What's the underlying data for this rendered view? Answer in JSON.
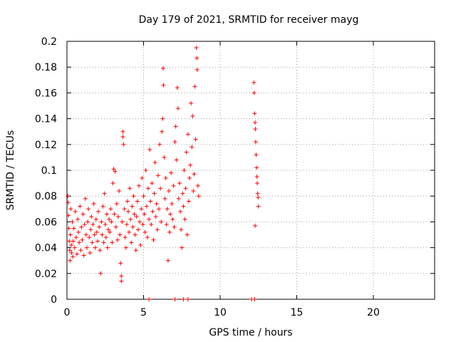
{
  "chart_data": {
    "type": "scatter",
    "title": "Day 179 of 2021, SRMTID for receiver mayg",
    "xlabel": "GPS time / hours",
    "ylabel": "SRMTID / TECUs",
    "xlim": [
      0,
      24
    ],
    "ylim": [
      0,
      0.2
    ],
    "xticks": [
      0,
      5,
      10,
      15,
      20
    ],
    "xtick_labels": [
      "0",
      "5",
      "10",
      "15",
      "20"
    ],
    "yticks": [
      0,
      0.02,
      0.04,
      0.06,
      0.08,
      0.1,
      0.12,
      0.14,
      0.16,
      0.18,
      0.2
    ],
    "ytick_labels": [
      "0",
      "0.02",
      "0.04",
      "0.06",
      "0.08",
      "0.1",
      "0.12",
      "0.14",
      "0.16",
      "0.18",
      "0.2"
    ],
    "grid": true,
    "marker": "+",
    "color": "#ff0000",
    "series": [
      {
        "name": "SRMTID",
        "points": [
          [
            0.05,
            0.08
          ],
          [
            0.08,
            0.075
          ],
          [
            0.1,
            0.065
          ],
          [
            0.12,
            0.055
          ],
          [
            0.15,
            0.045
          ],
          [
            0.18,
            0.038
          ],
          [
            0.2,
            0.03
          ],
          [
            0.22,
            0.05
          ],
          [
            0.25,
            0.07
          ],
          [
            0.28,
            0.042
          ],
          [
            0.3,
            0.036
          ],
          [
            0.35,
            0.06
          ],
          [
            0.38,
            0.033
          ],
          [
            0.4,
            0.045
          ],
          [
            0.45,
            0.055
          ],
          [
            0.5,
            0.04
          ],
          [
            0.55,
            0.068
          ],
          [
            0.6,
            0.048
          ],
          [
            0.65,
            0.035
          ],
          [
            0.7,
            0.062
          ],
          [
            0.75,
            0.052
          ],
          [
            0.8,
            0.044
          ],
          [
            0.85,
            0.072
          ],
          [
            0.9,
            0.038
          ],
          [
            0.95,
            0.056
          ],
          [
            1.0,
            0.046
          ],
          [
            1.05,
            0.066
          ],
          [
            1.1,
            0.034
          ],
          [
            1.15,
            0.058
          ],
          [
            1.2,
            0.078
          ],
          [
            1.25,
            0.05
          ],
          [
            1.3,
            0.04
          ],
          [
            1.35,
            0.06
          ],
          [
            1.4,
            0.07
          ],
          [
            1.45,
            0.048
          ],
          [
            1.5,
            0.036
          ],
          [
            1.55,
            0.054
          ],
          [
            1.6,
            0.064
          ],
          [
            1.65,
            0.044
          ],
          [
            1.7,
            0.058
          ],
          [
            1.75,
            0.074
          ],
          [
            1.8,
            0.05
          ],
          [
            1.85,
            0.04
          ],
          [
            1.9,
            0.062
          ],
          [
            1.95,
            0.052
          ],
          [
            2.0,
            0.045
          ],
          [
            2.05,
            0.068
          ],
          [
            2.1,
            0.056
          ],
          [
            2.15,
            0.038
          ],
          [
            2.2,
            0.02
          ],
          [
            2.25,
            0.06
          ],
          [
            2.3,
            0.05
          ],
          [
            2.35,
            0.072
          ],
          [
            2.4,
            0.044
          ],
          [
            2.45,
            0.082
          ],
          [
            2.5,
            0.058
          ],
          [
            2.55,
            0.048
          ],
          [
            2.6,
            0.066
          ],
          [
            2.65,
            0.04
          ],
          [
            2.7,
            0.054
          ],
          [
            2.75,
            0.062
          ],
          [
            2.8,
            0.052
          ],
          [
            2.85,
            0.07
          ],
          [
            2.9,
            0.06
          ],
          [
            2.95,
            0.044
          ],
          [
            3.0,
            0.09
          ],
          [
            3.05,
            0.101
          ],
          [
            3.1,
            0.066
          ],
          [
            3.15,
            0.099
          ],
          [
            3.2,
            0.056
          ],
          [
            3.25,
            0.074
          ],
          [
            3.3,
            0.046
          ],
          [
            3.35,
            0.064
          ],
          [
            3.4,
            0.084
          ],
          [
            3.45,
            0.05
          ],
          [
            3.5,
            0.028
          ],
          [
            3.55,
            0.018
          ],
          [
            3.55,
            0.014
          ],
          [
            3.6,
            0.06
          ],
          [
            3.65,
            0.13
          ],
          [
            3.65,
            0.126
          ],
          [
            3.7,
            0.12
          ],
          [
            3.75,
            0.07
          ],
          [
            3.8,
            0.048
          ],
          [
            3.85,
            0.04
          ],
          [
            3.9,
            0.058
          ],
          [
            3.95,
            0.076
          ],
          [
            4.0,
            0.068
          ],
          [
            4.05,
            0.052
          ],
          [
            4.1,
            0.086
          ],
          [
            4.15,
            0.062
          ],
          [
            4.2,
            0.044
          ],
          [
            4.25,
            0.072
          ],
          [
            4.3,
            0.056
          ],
          [
            4.35,
            0.08
          ],
          [
            4.4,
            0.066
          ],
          [
            4.45,
            0.05
          ],
          [
            4.5,
            0.038
          ],
          [
            4.55,
            0.064
          ],
          [
            4.6,
            0.076
          ],
          [
            4.65,
            0.054
          ],
          [
            4.7,
            0.088
          ],
          [
            4.75,
            0.06
          ],
          [
            4.8,
            0.042
          ],
          [
            4.85,
            0.07
          ],
          [
            4.9,
            0.094
          ],
          [
            4.95,
            0.058
          ],
          [
            5.0,
            0.08
          ],
          [
            5.05,
            0.066
          ],
          [
            5.1,
            0.052
          ],
          [
            5.15,
            0.1
          ],
          [
            5.2,
            0.072
          ],
          [
            5.25,
            0.048
          ],
          [
            5.3,
            0.086
          ],
          [
            5.35,
            0.062
          ],
          [
            5.4,
            0.116
          ],
          [
            5.45,
            0.076
          ],
          [
            5.5,
            0.058
          ],
          [
            5.55,
            0.09
          ],
          [
            5.6,
            0.068
          ],
          [
            5.65,
            0.046
          ],
          [
            5.7,
            0.082
          ],
          [
            5.75,
            0.106
          ],
          [
            5.8,
            0.064
          ],
          [
            5.85,
            0.074
          ],
          [
            5.9,
            0.054
          ],
          [
            5.95,
            0.096
          ],
          [
            6.0,
            0.07
          ],
          [
            6.05,
            0.12
          ],
          [
            6.1,
            0.086
          ],
          [
            6.15,
            0.06
          ],
          [
            6.2,
            0.13
          ],
          [
            6.25,
            0.14
          ],
          [
            6.28,
            0.179
          ],
          [
            6.3,
            0.166
          ],
          [
            6.35,
            0.11
          ],
          [
            6.4,
            0.078
          ],
          [
            6.45,
            0.094
          ],
          [
            6.5,
            0.058
          ],
          [
            6.55,
            0.07
          ],
          [
            6.6,
            0.03
          ],
          [
            6.65,
            0.084
          ],
          [
            6.7,
            0.052
          ],
          [
            6.75,
            0.066
          ],
          [
            6.8,
            0.098
          ],
          [
            6.85,
            0.074
          ],
          [
            6.9,
            0.062
          ],
          [
            6.95,
            0.088
          ],
          [
            7.0,
            0.056
          ],
          [
            7.05,
            0.122
          ],
          [
            7.1,
            0.134
          ],
          [
            7.15,
            0.108
          ],
          [
            7.2,
            0.164
          ],
          [
            7.25,
            0.148
          ],
          [
            7.3,
            0.078
          ],
          [
            7.35,
            0.09
          ],
          [
            7.4,
            0.068
          ],
          [
            7.45,
            0.054
          ],
          [
            7.5,
            0.04
          ],
          [
            7.55,
            0.082
          ],
          [
            7.6,
            0.072
          ],
          [
            7.65,
            0.1
          ],
          [
            7.7,
            0.062
          ],
          [
            7.75,
            0.086
          ],
          [
            7.8,
            0.114
          ],
          [
            7.85,
            0.05
          ],
          [
            7.9,
            0.128
          ],
          [
            7.95,
            0.076
          ],
          [
            8.0,
            0.094
          ],
          [
            8.05,
            0.104
          ],
          [
            8.1,
            0.152
          ],
          [
            8.15,
            0.118
          ],
          [
            8.2,
            0.142
          ],
          [
            8.25,
            0.084
          ],
          [
            8.3,
            0.097
          ],
          [
            8.35,
            0.165
          ],
          [
            8.4,
            0.124
          ],
          [
            8.45,
            0.195
          ],
          [
            8.48,
            0.187
          ],
          [
            8.5,
            0.178
          ],
          [
            8.55,
            0.088
          ],
          [
            8.6,
            0.08
          ],
          [
            12.2,
            0.168
          ],
          [
            12.22,
            0.16
          ],
          [
            12.25,
            0.144
          ],
          [
            12.28,
            0.137
          ],
          [
            12.3,
            0.132
          ],
          [
            12.32,
            0.122
          ],
          [
            12.35,
            0.112
          ],
          [
            12.38,
            0.102
          ],
          [
            12.4,
            0.095
          ],
          [
            12.42,
            0.09
          ],
          [
            12.45,
            0.082
          ],
          [
            12.48,
            0.079
          ],
          [
            12.5,
            0.072
          ],
          [
            12.28,
            0.057
          ],
          [
            5.35,
            0.0
          ],
          [
            7.05,
            0.0
          ],
          [
            7.6,
            0.0
          ],
          [
            7.9,
            0.0
          ],
          [
            12.05,
            0.0
          ],
          [
            12.25,
            0.0
          ]
        ]
      }
    ]
  }
}
